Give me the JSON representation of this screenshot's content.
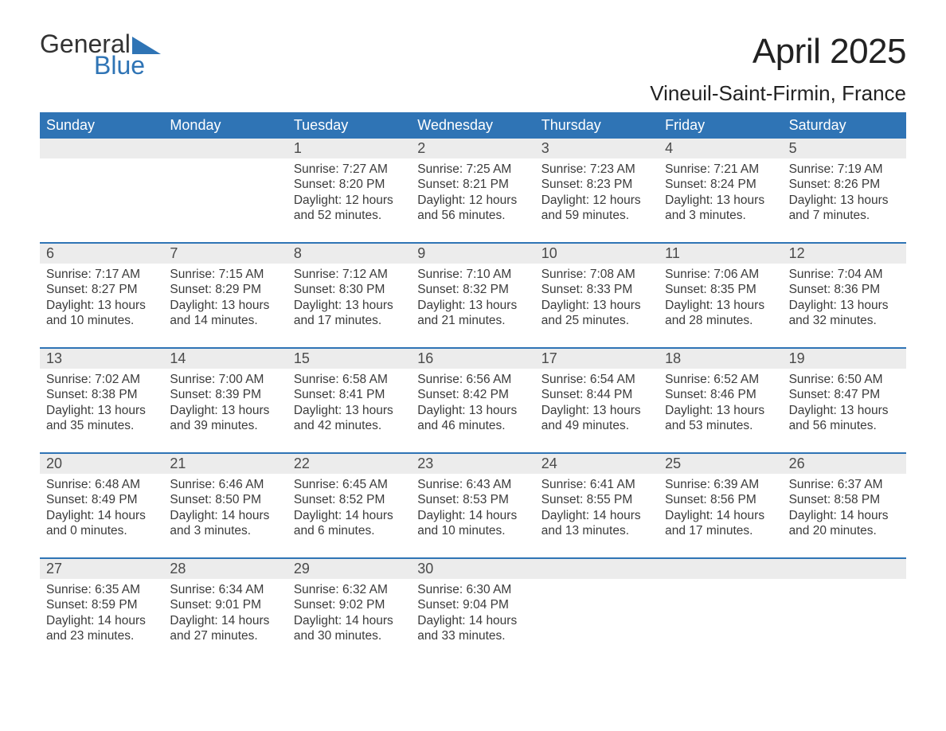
{
  "logo": {
    "l1": "General",
    "l2": "Blue",
    "tri_color": "#2f74b5"
  },
  "header": {
    "month": "April 2025",
    "location": "Vineuil-Saint-Firmin, France"
  },
  "colors": {
    "header_bg": "#2f74b5",
    "header_text": "#ffffff",
    "daynum_bg": "#ececec",
    "week_border": "#2f74b5",
    "text": "#3b3b3b"
  },
  "day_headers": [
    "Sunday",
    "Monday",
    "Tuesday",
    "Wednesday",
    "Thursday",
    "Friday",
    "Saturday"
  ],
  "weeks": [
    [
      {
        "n": "",
        "sr": "",
        "ss": "",
        "dl": ""
      },
      {
        "n": "",
        "sr": "",
        "ss": "",
        "dl": ""
      },
      {
        "n": "1",
        "sr": "Sunrise: 7:27 AM",
        "ss": "Sunset: 8:20 PM",
        "dl": "Daylight: 12 hours and 52 minutes."
      },
      {
        "n": "2",
        "sr": "Sunrise: 7:25 AM",
        "ss": "Sunset: 8:21 PM",
        "dl": "Daylight: 12 hours and 56 minutes."
      },
      {
        "n": "3",
        "sr": "Sunrise: 7:23 AM",
        "ss": "Sunset: 8:23 PM",
        "dl": "Daylight: 12 hours and 59 minutes."
      },
      {
        "n": "4",
        "sr": "Sunrise: 7:21 AM",
        "ss": "Sunset: 8:24 PM",
        "dl": "Daylight: 13 hours and 3 minutes."
      },
      {
        "n": "5",
        "sr": "Sunrise: 7:19 AM",
        "ss": "Sunset: 8:26 PM",
        "dl": "Daylight: 13 hours and 7 minutes."
      }
    ],
    [
      {
        "n": "6",
        "sr": "Sunrise: 7:17 AM",
        "ss": "Sunset: 8:27 PM",
        "dl": "Daylight: 13 hours and 10 minutes."
      },
      {
        "n": "7",
        "sr": "Sunrise: 7:15 AM",
        "ss": "Sunset: 8:29 PM",
        "dl": "Daylight: 13 hours and 14 minutes."
      },
      {
        "n": "8",
        "sr": "Sunrise: 7:12 AM",
        "ss": "Sunset: 8:30 PM",
        "dl": "Daylight: 13 hours and 17 minutes."
      },
      {
        "n": "9",
        "sr": "Sunrise: 7:10 AM",
        "ss": "Sunset: 8:32 PM",
        "dl": "Daylight: 13 hours and 21 minutes."
      },
      {
        "n": "10",
        "sr": "Sunrise: 7:08 AM",
        "ss": "Sunset: 8:33 PM",
        "dl": "Daylight: 13 hours and 25 minutes."
      },
      {
        "n": "11",
        "sr": "Sunrise: 7:06 AM",
        "ss": "Sunset: 8:35 PM",
        "dl": "Daylight: 13 hours and 28 minutes."
      },
      {
        "n": "12",
        "sr": "Sunrise: 7:04 AM",
        "ss": "Sunset: 8:36 PM",
        "dl": "Daylight: 13 hours and 32 minutes."
      }
    ],
    [
      {
        "n": "13",
        "sr": "Sunrise: 7:02 AM",
        "ss": "Sunset: 8:38 PM",
        "dl": "Daylight: 13 hours and 35 minutes."
      },
      {
        "n": "14",
        "sr": "Sunrise: 7:00 AM",
        "ss": "Sunset: 8:39 PM",
        "dl": "Daylight: 13 hours and 39 minutes."
      },
      {
        "n": "15",
        "sr": "Sunrise: 6:58 AM",
        "ss": "Sunset: 8:41 PM",
        "dl": "Daylight: 13 hours and 42 minutes."
      },
      {
        "n": "16",
        "sr": "Sunrise: 6:56 AM",
        "ss": "Sunset: 8:42 PM",
        "dl": "Daylight: 13 hours and 46 minutes."
      },
      {
        "n": "17",
        "sr": "Sunrise: 6:54 AM",
        "ss": "Sunset: 8:44 PM",
        "dl": "Daylight: 13 hours and 49 minutes."
      },
      {
        "n": "18",
        "sr": "Sunrise: 6:52 AM",
        "ss": "Sunset: 8:46 PM",
        "dl": "Daylight: 13 hours and 53 minutes."
      },
      {
        "n": "19",
        "sr": "Sunrise: 6:50 AM",
        "ss": "Sunset: 8:47 PM",
        "dl": "Daylight: 13 hours and 56 minutes."
      }
    ],
    [
      {
        "n": "20",
        "sr": "Sunrise: 6:48 AM",
        "ss": "Sunset: 8:49 PM",
        "dl": "Daylight: 14 hours and 0 minutes."
      },
      {
        "n": "21",
        "sr": "Sunrise: 6:46 AM",
        "ss": "Sunset: 8:50 PM",
        "dl": "Daylight: 14 hours and 3 minutes."
      },
      {
        "n": "22",
        "sr": "Sunrise: 6:45 AM",
        "ss": "Sunset: 8:52 PM",
        "dl": "Daylight: 14 hours and 6 minutes."
      },
      {
        "n": "23",
        "sr": "Sunrise: 6:43 AM",
        "ss": "Sunset: 8:53 PM",
        "dl": "Daylight: 14 hours and 10 minutes."
      },
      {
        "n": "24",
        "sr": "Sunrise: 6:41 AM",
        "ss": "Sunset: 8:55 PM",
        "dl": "Daylight: 14 hours and 13 minutes."
      },
      {
        "n": "25",
        "sr": "Sunrise: 6:39 AM",
        "ss": "Sunset: 8:56 PM",
        "dl": "Daylight: 14 hours and 17 minutes."
      },
      {
        "n": "26",
        "sr": "Sunrise: 6:37 AM",
        "ss": "Sunset: 8:58 PM",
        "dl": "Daylight: 14 hours and 20 minutes."
      }
    ],
    [
      {
        "n": "27",
        "sr": "Sunrise: 6:35 AM",
        "ss": "Sunset: 8:59 PM",
        "dl": "Daylight: 14 hours and 23 minutes."
      },
      {
        "n": "28",
        "sr": "Sunrise: 6:34 AM",
        "ss": "Sunset: 9:01 PM",
        "dl": "Daylight: 14 hours and 27 minutes."
      },
      {
        "n": "29",
        "sr": "Sunrise: 6:32 AM",
        "ss": "Sunset: 9:02 PM",
        "dl": "Daylight: 14 hours and 30 minutes."
      },
      {
        "n": "30",
        "sr": "Sunrise: 6:30 AM",
        "ss": "Sunset: 9:04 PM",
        "dl": "Daylight: 14 hours and 33 minutes."
      },
      {
        "n": "",
        "sr": "",
        "ss": "",
        "dl": ""
      },
      {
        "n": "",
        "sr": "",
        "ss": "",
        "dl": ""
      },
      {
        "n": "",
        "sr": "",
        "ss": "",
        "dl": ""
      }
    ]
  ]
}
